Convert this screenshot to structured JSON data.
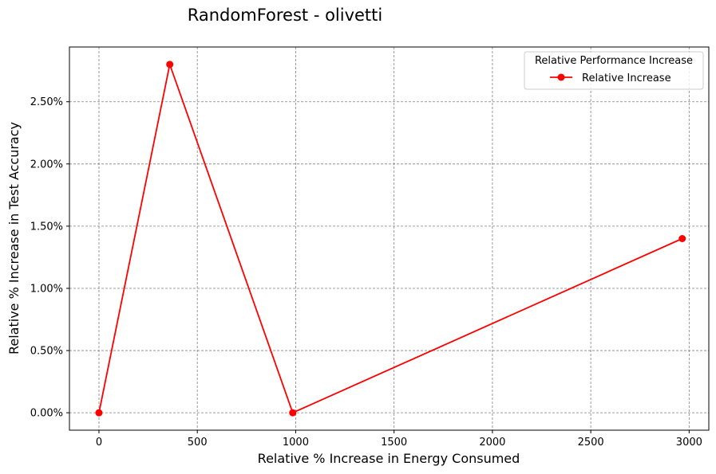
{
  "chart_data": {
    "type": "line",
    "title": "RandomForest - olivetti",
    "xlabel": "Relative % Increase in Energy Consumed",
    "ylabel": "Relative % Increase in Test Accuracy",
    "xlim": [
      -150,
      3100
    ],
    "ylim": [
      -0.0014,
      0.0294
    ],
    "xticks": [
      0,
      500,
      1000,
      1500,
      2000,
      2500,
      3000
    ],
    "xtick_labels": [
      "0",
      "500",
      "1000",
      "1500",
      "2000",
      "2500",
      "3000"
    ],
    "yticks": [
      0,
      0.005,
      0.01,
      0.015,
      0.02,
      0.025
    ],
    "ytick_labels": [
      "0.00%",
      "0.50%",
      "1.00%",
      "1.50%",
      "2.00%",
      "2.50%"
    ],
    "grid": true,
    "legend": {
      "title": "Relative Performance Increase",
      "placement": "top-right"
    },
    "series": [
      {
        "name": "Relative Increase",
        "color": "#ff0000",
        "marker": "circle",
        "x": [
          0,
          360,
          985,
          2965
        ],
        "y": [
          0,
          0.028,
          0,
          0.014
        ]
      }
    ]
  }
}
